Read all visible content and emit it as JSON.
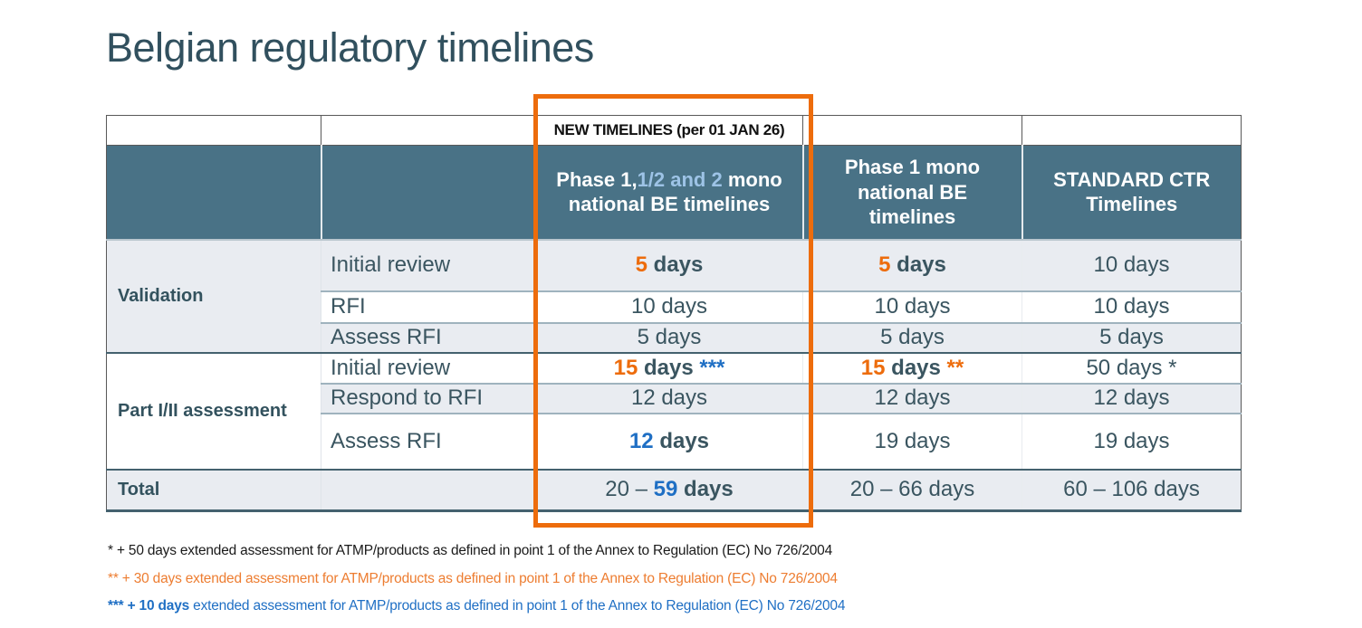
{
  "colors": {
    "dark": "#33525e",
    "body_text": "#3a5560",
    "orange": "#ed6c0c",
    "blue": "#1f6fc4",
    "lightblue": "#9dc3e6",
    "white": "#ffffff",
    "header_bg": "#497286",
    "row_gray": "#e9ecf1",
    "highlight_border": "#ed6c0c",
    "footnote_black": "#1a1a1a",
    "footnote_orange": "#ed7d31",
    "footnote_blue": "#1f6fc4"
  },
  "title": "Belgian regulatory timelines",
  "table": {
    "banner": "NEW TIMELINES (per 01 JAN 26)",
    "headers": {
      "col3": [
        {
          "t": "Phase 1,",
          "b": true
        },
        {
          "t": "1/2 and 2",
          "c": "lightblue",
          "b": true
        },
        {
          "t": " mono national BE timelines",
          "b": true
        }
      ],
      "col4": "Phase 1 mono national BE timelines",
      "col5": "STANDARD CTR Timelines"
    },
    "sections": {
      "validation": "Validation",
      "part": "Part I/II assessment",
      "total": "Total"
    },
    "rows": [
      {
        "label": "Initial review",
        "c3": [
          {
            "t": "5",
            "c": "orange",
            "b": true
          },
          {
            "t": " days",
            "b": true
          }
        ],
        "c4": [
          {
            "t": "5",
            "c": "orange",
            "b": true
          },
          {
            "t": " days",
            "b": true
          }
        ],
        "c5": "10 days"
      },
      {
        "label": "RFI",
        "c3": "10 days",
        "c4": "10 days",
        "c5": "10 days"
      },
      {
        "label": "Assess RFI",
        "c3": "5 days",
        "c4": "5 days",
        "c5": "5 days"
      },
      {
        "label": "Initial review",
        "c3": [
          {
            "t": "15",
            "c": "orange",
            "b": true
          },
          {
            "t": " days ",
            "b": true
          },
          {
            "t": "***",
            "c": "blue",
            "b": true
          }
        ],
        "c4": [
          {
            "t": "15",
            "c": "orange",
            "b": true
          },
          {
            "t": " days ",
            "b": true
          },
          {
            "t": "**",
            "c": "orange",
            "b": true
          }
        ],
        "c5": "50 days *"
      },
      {
        "label": "Respond to RFI",
        "c3": "12 days",
        "c4": "12 days",
        "c5": "12 days"
      },
      {
        "label": "Assess RFI",
        "c3": [
          {
            "t": "12",
            "c": "blue",
            "b": true
          },
          {
            "t": " days",
            "b": true
          }
        ],
        "c4": "19 days",
        "c5": "19 days"
      }
    ],
    "total": {
      "c3": [
        {
          "t": "20 – "
        },
        {
          "t": "59",
          "c": "blue",
          "b": true
        },
        {
          "t": " days",
          "b": true
        }
      ],
      "c4": "20 – 66 days",
      "c5": "60 – 106 days"
    }
  },
  "footnotes": [
    {
      "parts": [
        {
          "t": "* + 50 days extended assessment for ATMP/products as defined in point 1 of the Annex to Regulation (EC) No 726/2004",
          "c": "footnote_black"
        }
      ]
    },
    {
      "parts": [
        {
          "t": "** + 30 days extended assessment for ATMP/products as defined in point 1 of the Annex to Regulation (EC) No 726/2004",
          "c": "footnote_orange"
        }
      ]
    },
    {
      "parts": [
        {
          "t": "*** + 10 days",
          "c": "footnote_blue",
          "b": true
        },
        {
          "t": " extended assessment for ATMP/products as defined in point 1 of the Annex to Regulation (EC) No 726/2004",
          "c": "footnote_blue"
        }
      ]
    }
  ]
}
